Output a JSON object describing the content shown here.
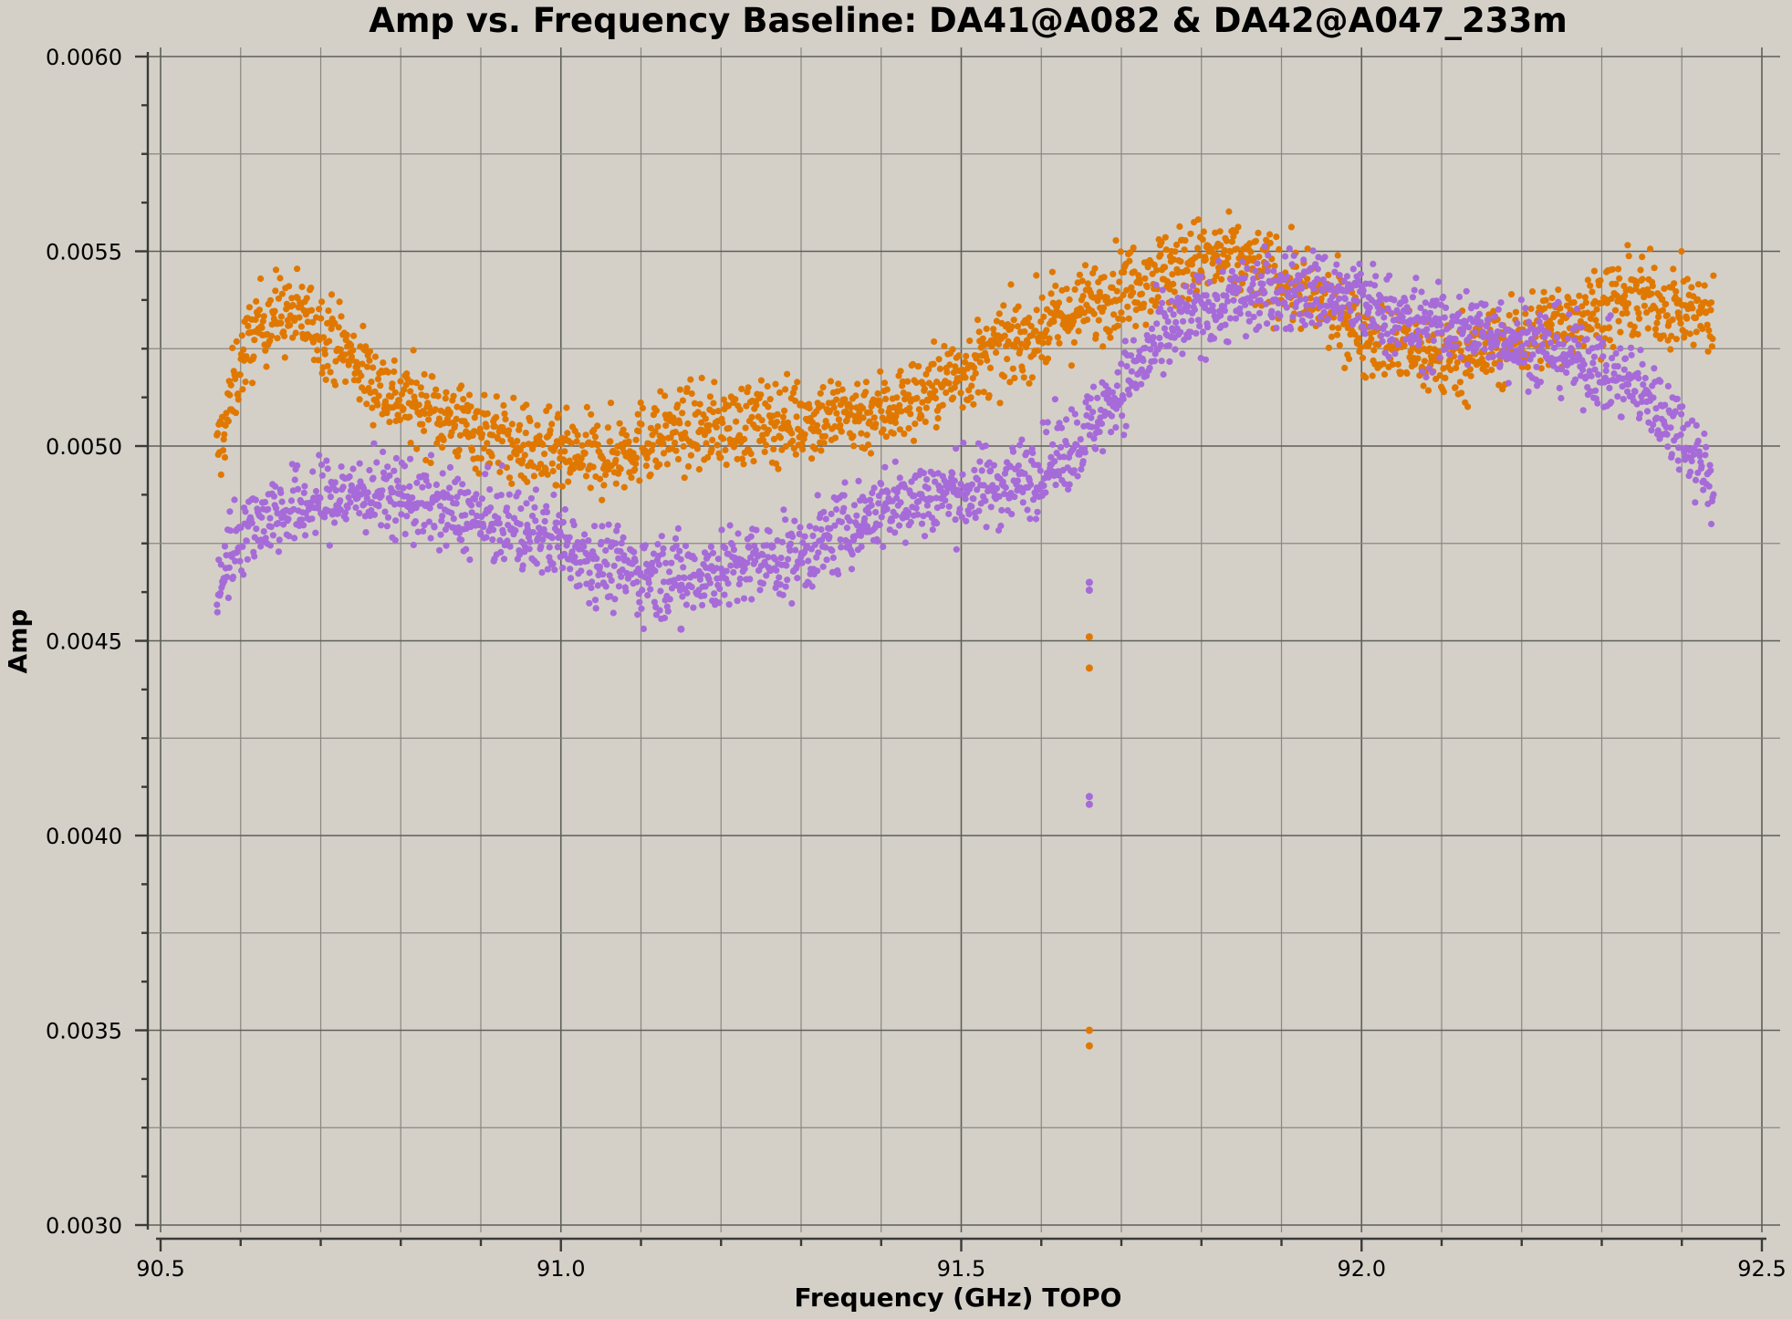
{
  "chart_data": {
    "type": "scatter",
    "title": "Amp vs. Frequency Baseline: DA41@A082 & DA42@A047_233m",
    "xlabel": "Frequency (GHz) TOPO",
    "ylabel": "Amp",
    "xlim": [
      90.5,
      92.5
    ],
    "ylim": [
      0.003,
      0.006
    ],
    "xticks": [
      90.5,
      91.0,
      91.5,
      92.0,
      92.5
    ],
    "xtick_labels": [
      "90.5",
      "91.0",
      "91.5",
      "92.0",
      "92.5"
    ],
    "yticks": [
      0.003,
      0.0035,
      0.004,
      0.0045,
      0.005,
      0.0055,
      0.006
    ],
    "ytick_labels": [
      "0.0030",
      "0.0035",
      "0.0040",
      "0.0045",
      "0.0050",
      "0.0055",
      "0.0060"
    ],
    "grid": true,
    "series": [
      {
        "color": "#e07800",
        "trend_x": [
          90.57,
          90.58,
          90.6,
          90.62,
          90.64,
          90.68,
          90.72,
          90.76,
          90.8,
          90.85,
          90.9,
          90.95,
          91.0,
          91.05,
          91.1,
          91.15,
          91.2,
          91.3,
          91.4,
          91.45,
          91.5,
          91.55,
          91.6,
          91.65,
          91.7,
          91.75,
          91.8,
          91.85,
          91.9,
          91.95,
          92.0,
          92.05,
          92.1,
          92.15,
          92.2,
          92.25,
          92.3,
          92.35,
          92.4,
          92.44
        ],
        "trend_y": [
          0.00497,
          0.00505,
          0.00522,
          0.0053,
          0.00534,
          0.00533,
          0.00527,
          0.00518,
          0.00512,
          0.00508,
          0.00504,
          0.005,
          0.00497,
          0.00497,
          0.00501,
          0.00504,
          0.00505,
          0.00507,
          0.00509,
          0.00513,
          0.00519,
          0.00525,
          0.0053,
          0.00535,
          0.00541,
          0.00545,
          0.00548,
          0.00547,
          0.00543,
          0.00537,
          0.0053,
          0.00525,
          0.00522,
          0.00524,
          0.00528,
          0.00532,
          0.00536,
          0.00538,
          0.00535,
          0.00533
        ],
        "outliers": [
          [
            91.66,
            0.00451
          ],
          [
            91.66,
            0.00443
          ],
          [
            91.66,
            0.0035
          ],
          [
            91.66,
            0.00346
          ]
        ]
      },
      {
        "color": "#a66bd8",
        "trend_x": [
          90.57,
          90.58,
          90.6,
          90.63,
          90.67,
          90.7,
          90.75,
          90.8,
          90.85,
          90.9,
          90.95,
          91.0,
          91.05,
          91.1,
          91.15,
          91.2,
          91.25,
          91.3,
          91.35,
          91.4,
          91.45,
          91.5,
          91.55,
          91.6,
          91.65,
          91.7,
          91.75,
          91.8,
          91.85,
          91.9,
          91.95,
          92.0,
          92.05,
          92.1,
          92.15,
          92.2,
          92.25,
          92.3,
          92.35,
          92.4,
          92.44
        ],
        "trend_y": [
          0.0046,
          0.0047,
          0.00478,
          0.00482,
          0.00484,
          0.00486,
          0.00488,
          0.00487,
          0.00484,
          0.00481,
          0.00478,
          0.00476,
          0.0047,
          0.00467,
          0.00467,
          0.00468,
          0.0047,
          0.00472,
          0.00478,
          0.00484,
          0.00487,
          0.00488,
          0.0049,
          0.00494,
          0.00502,
          0.00515,
          0.00527,
          0.00535,
          0.00538,
          0.0054,
          0.0054,
          0.00537,
          0.00532,
          0.0053,
          0.0053,
          0.00527,
          0.00524,
          0.0052,
          0.00514,
          0.00504,
          0.0049
        ],
        "outliers": [
          [
            91.66,
            0.00465
          ],
          [
            91.66,
            0.00463
          ],
          [
            91.66,
            0.0041
          ],
          [
            91.66,
            0.00408
          ],
          [
            91.15,
            0.00453
          ]
        ]
      }
    ]
  }
}
